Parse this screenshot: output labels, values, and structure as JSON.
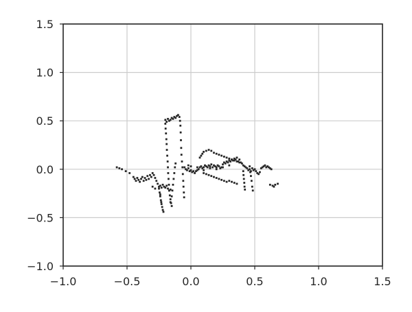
{
  "chart_data": {
    "type": "scatter",
    "title": "",
    "xlabel": "",
    "ylabel": "",
    "xlim": [
      -1.0,
      1.5
    ],
    "ylim": [
      -1.0,
      1.5
    ],
    "grid": true,
    "x_ticks": [
      -1.0,
      -0.5,
      0.0,
      0.5,
      1.0,
      1.5
    ],
    "y_ticks": [
      -1.0,
      -0.5,
      0.0,
      0.5,
      1.0,
      1.5
    ],
    "x_tick_labels": [
      "−1.0",
      "−0.5",
      "0.0",
      "0.5",
      "1.0",
      "1.5"
    ],
    "y_tick_labels": [
      "−1.0",
      "−0.5",
      "0.0",
      "0.5",
      "1.0",
      "1.5"
    ],
    "marker_color": "#262626",
    "grid_color": "#cccccc",
    "frame_color": "#262626",
    "series": [
      {
        "points": [
          [
            -0.58,
            0.02
          ],
          [
            -0.56,
            0.01
          ],
          [
            -0.54,
            0.0
          ],
          [
            -0.51,
            -0.02
          ],
          [
            -0.48,
            -0.04
          ],
          [
            -0.45,
            -0.08
          ],
          [
            -0.44,
            -0.1
          ],
          [
            -0.43,
            -0.12
          ],
          [
            -0.42,
            -0.09
          ],
          [
            -0.41,
            -0.11
          ],
          [
            -0.4,
            -0.13
          ],
          [
            -0.39,
            -0.1
          ],
          [
            -0.38,
            -0.08
          ],
          [
            -0.37,
            -0.12
          ],
          [
            -0.36,
            -0.09
          ],
          [
            -0.35,
            -0.11
          ],
          [
            -0.34,
            -0.07
          ],
          [
            -0.33,
            -0.1
          ],
          [
            -0.32,
            -0.06
          ],
          [
            -0.31,
            -0.08
          ],
          [
            -0.3,
            -0.04
          ],
          [
            -0.29,
            -0.06
          ],
          [
            -0.28,
            -0.09
          ],
          [
            -0.27,
            -0.12
          ],
          [
            -0.26,
            -0.15
          ],
          [
            -0.25,
            -0.18
          ],
          [
            -0.24,
            -0.17
          ],
          [
            -0.23,
            -0.19
          ],
          [
            -0.22,
            -0.16
          ],
          [
            -0.21,
            -0.18
          ],
          [
            -0.2,
            -0.19
          ],
          [
            -0.19,
            -0.17
          ],
          [
            -0.18,
            -0.2
          ],
          [
            -0.17,
            -0.22
          ],
          [
            -0.16,
            -0.21
          ],
          [
            -0.25,
            -0.2
          ],
          [
            -0.245,
            -0.24
          ],
          [
            -0.24,
            -0.28
          ],
          [
            -0.235,
            -0.32
          ],
          [
            -0.23,
            -0.36
          ],
          [
            -0.225,
            -0.39
          ],
          [
            -0.22,
            -0.42
          ],
          [
            -0.215,
            -0.44
          ],
          [
            -0.24,
            -0.26
          ],
          [
            -0.232,
            -0.34
          ],
          [
            -0.17,
            -0.22
          ],
          [
            -0.165,
            -0.27
          ],
          [
            -0.16,
            -0.31
          ],
          [
            -0.155,
            -0.35
          ],
          [
            -0.15,
            -0.38
          ],
          [
            -0.2,
            0.51
          ],
          [
            -0.2,
            0.47
          ],
          [
            -0.198,
            0.42
          ],
          [
            -0.195,
            0.37
          ],
          [
            -0.192,
            0.31
          ],
          [
            -0.19,
            0.26
          ],
          [
            -0.188,
            0.2
          ],
          [
            -0.185,
            0.14
          ],
          [
            -0.182,
            0.08
          ],
          [
            -0.18,
            0.02
          ],
          [
            -0.178,
            -0.04
          ],
          [
            -0.175,
            -0.1
          ],
          [
            -0.172,
            -0.16
          ],
          [
            -0.19,
            0.49
          ],
          [
            -0.18,
            0.52
          ],
          [
            -0.17,
            0.5
          ],
          [
            -0.16,
            0.51
          ],
          [
            -0.15,
            0.53
          ],
          [
            -0.14,
            0.52
          ],
          [
            -0.13,
            0.54
          ],
          [
            -0.12,
            0.53
          ],
          [
            -0.11,
            0.55
          ],
          [
            -0.1,
            0.56
          ],
          [
            -0.09,
            0.54
          ],
          [
            -0.085,
            0.5
          ],
          [
            -0.082,
            0.45
          ],
          [
            -0.08,
            0.38
          ],
          [
            -0.078,
            0.3
          ],
          [
            -0.076,
            0.22
          ],
          [
            -0.074,
            0.15
          ],
          [
            -0.07,
            0.08
          ],
          [
            -0.066,
            0.02
          ],
          [
            -0.063,
            -0.05
          ],
          [
            -0.06,
            -0.12
          ],
          [
            -0.058,
            -0.18
          ],
          [
            -0.055,
            -0.24
          ],
          [
            -0.053,
            -0.29
          ],
          [
            -0.12,
            0.06
          ],
          [
            -0.125,
            0.02
          ],
          [
            -0.13,
            -0.04
          ],
          [
            -0.135,
            -0.1
          ],
          [
            -0.14,
            -0.16
          ],
          [
            -0.145,
            -0.22
          ],
          [
            -0.15,
            -0.28
          ],
          [
            -0.16,
            -0.34
          ],
          [
            -0.05,
            0.02
          ],
          [
            -0.04,
            0.0
          ],
          [
            -0.03,
            -0.01
          ],
          [
            -0.02,
            0.01
          ],
          [
            -0.01,
            -0.02
          ],
          [
            0.0,
            -0.01
          ],
          [
            0.01,
            -0.03
          ],
          [
            0.02,
            -0.02
          ],
          [
            0.03,
            -0.04
          ],
          [
            0.04,
            -0.02
          ],
          [
            0.05,
            -0.01
          ],
          [
            0.06,
            0.0
          ],
          [
            0.07,
            0.02
          ],
          [
            0.08,
            0.03
          ],
          [
            0.09,
            0.01
          ],
          [
            0.1,
            0.02
          ],
          [
            0.11,
            0.04
          ],
          [
            0.12,
            0.03
          ],
          [
            0.13,
            0.02
          ],
          [
            0.14,
            0.04
          ],
          [
            0.15,
            0.03
          ],
          [
            0.16,
            0.05
          ],
          [
            0.17,
            0.02
          ],
          [
            0.18,
            0.04
          ],
          [
            0.19,
            0.03
          ],
          [
            0.2,
            0.02
          ],
          [
            0.21,
            0.04
          ],
          [
            0.22,
            0.03
          ],
          [
            0.23,
            0.01
          ],
          [
            0.24,
            0.02
          ],
          [
            0.25,
            0.05
          ],
          [
            0.26,
            0.07
          ],
          [
            0.27,
            0.06
          ],
          [
            0.28,
            0.08
          ],
          [
            0.29,
            0.07
          ],
          [
            0.3,
            0.09
          ],
          [
            0.31,
            0.08
          ],
          [
            0.32,
            0.1
          ],
          [
            0.33,
            0.09
          ],
          [
            0.34,
            0.11
          ],
          [
            0.35,
            0.1
          ],
          [
            0.36,
            0.12
          ],
          [
            0.37,
            0.08
          ],
          [
            0.38,
            0.1
          ],
          [
            0.39,
            0.07
          ],
          [
            0.4,
            0.06
          ],
          [
            0.41,
            0.04
          ],
          [
            0.42,
            0.03
          ],
          [
            0.43,
            0.02
          ],
          [
            0.44,
            0.01
          ],
          [
            0.45,
            -0.01
          ],
          [
            0.46,
            0.0
          ],
          [
            0.47,
            -0.02
          ],
          [
            0.48,
            0.01
          ],
          [
            0.49,
            -0.01
          ],
          [
            0.5,
            0.0
          ],
          [
            0.51,
            -0.02
          ],
          [
            0.52,
            -0.04
          ],
          [
            0.53,
            -0.05
          ],
          [
            0.54,
            -0.03
          ],
          [
            0.55,
            0.01
          ],
          [
            0.56,
            0.02
          ],
          [
            0.57,
            0.03
          ],
          [
            0.58,
            0.04
          ],
          [
            0.59,
            0.02
          ],
          [
            0.6,
            0.03
          ],
          [
            0.61,
            0.02
          ],
          [
            0.62,
            0.01
          ],
          [
            0.63,
            0.0
          ],
          [
            0.1,
            0.18
          ],
          [
            0.12,
            0.19
          ],
          [
            0.14,
            0.2
          ],
          [
            0.16,
            0.19
          ],
          [
            0.18,
            0.17
          ],
          [
            0.2,
            0.16
          ],
          [
            0.22,
            0.15
          ],
          [
            0.24,
            0.14
          ],
          [
            0.26,
            0.13
          ],
          [
            0.28,
            0.12
          ],
          [
            0.3,
            0.11
          ],
          [
            0.32,
            0.1
          ],
          [
            0.34,
            0.09
          ],
          [
            0.36,
            0.08
          ],
          [
            0.38,
            0.07
          ],
          [
            0.09,
            0.16
          ],
          [
            0.08,
            0.14
          ],
          [
            0.07,
            0.12
          ],
          [
            0.1,
            -0.04
          ],
          [
            0.12,
            -0.05
          ],
          [
            0.14,
            -0.06
          ],
          [
            0.16,
            -0.07
          ],
          [
            0.18,
            -0.08
          ],
          [
            0.2,
            -0.09
          ],
          [
            0.22,
            -0.1
          ],
          [
            0.24,
            -0.11
          ],
          [
            0.26,
            -0.12
          ],
          [
            0.28,
            -0.13
          ],
          [
            0.3,
            -0.12
          ],
          [
            0.32,
            -0.13
          ],
          [
            0.34,
            -0.14
          ],
          [
            0.36,
            -0.15
          ],
          [
            0.41,
            -0.02
          ],
          [
            0.412,
            -0.06
          ],
          [
            0.415,
            -0.1
          ],
          [
            0.418,
            -0.14
          ],
          [
            0.42,
            -0.18
          ],
          [
            0.423,
            -0.21
          ],
          [
            0.46,
            0.03
          ],
          [
            0.465,
            -0.03
          ],
          [
            0.47,
            -0.07
          ],
          [
            0.475,
            -0.12
          ],
          [
            0.48,
            -0.18
          ],
          [
            0.485,
            -0.22
          ],
          [
            0.62,
            -0.16
          ],
          [
            0.64,
            -0.17
          ],
          [
            0.66,
            -0.16
          ],
          [
            0.68,
            -0.15
          ],
          [
            0.65,
            -0.18
          ],
          [
            0.1,
            -0.01
          ],
          [
            0.15,
            0.01
          ],
          [
            0.2,
            0.0
          ],
          [
            0.25,
            0.02
          ],
          [
            0.3,
            0.04
          ],
          [
            0.05,
            0.02
          ],
          [
            0.0,
            0.03
          ],
          [
            -0.02,
            0.04
          ],
          [
            -0.3,
            -0.18
          ],
          [
            -0.28,
            -0.2
          ]
        ]
      }
    ]
  }
}
